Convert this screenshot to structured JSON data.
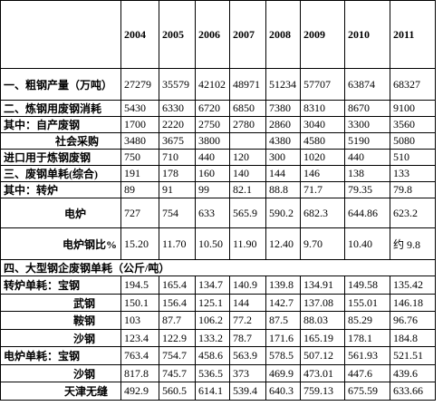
{
  "table": {
    "years": [
      "2004",
      "2005",
      "2006",
      "2007",
      "2008",
      "2009",
      "2010",
      "2011"
    ],
    "rows": [
      {
        "label": "一、粗钢产量（万吨）",
        "values": [
          "27279",
          "35579",
          "42102",
          "48971",
          "51234",
          "57707",
          "63874",
          "68327"
        ]
      },
      {
        "label": "二、炼钢用废钢消耗",
        "values": [
          "5430",
          "6330",
          "6720",
          "6850",
          "7380",
          "8310",
          "8670",
          "9100"
        ]
      },
      {
        "label": "其中：自产废钢",
        "values": [
          "1700",
          "2220",
          "2750",
          "2780",
          "2860",
          "3040",
          "3300",
          "3560"
        ]
      },
      {
        "label": "社会采购",
        "values": [
          "3480",
          "3675",
          "3800",
          null,
          "4380",
          "4580",
          "5190",
          "5080"
        ]
      },
      {
        "label": "进口用于炼钢废钢",
        "values": [
          "750",
          "710",
          "440",
          "120",
          "300",
          "1020",
          "440",
          "510"
        ]
      },
      {
        "label": "三、废钢单耗(综合)",
        "values": [
          "191",
          "178",
          "160",
          "140",
          "144",
          "146",
          "138",
          "133"
        ]
      },
      {
        "label": "其中：转炉",
        "values": [
          "89",
          "91",
          "99",
          "82.1",
          "88.8",
          "71.7",
          "79.35",
          "79.8"
        ]
      },
      {
        "label": "电炉",
        "values": [
          "727",
          "754",
          "633",
          "565.9",
          "590.2",
          "682.3",
          "644.86",
          "623.2"
        ]
      },
      {
        "label": "电炉钢比%",
        "values": [
          "15.20",
          "11.70",
          "10.50",
          "11.90",
          "12.40",
          "9.70",
          "10.40",
          "约 9.8"
        ]
      },
      {
        "label": "四、大型钢企废钢单耗（公斤/吨）"
      },
      {
        "label": "转炉单耗：宝钢",
        "values": [
          "194.5",
          "165.4",
          "134.7",
          "140.9",
          "139.8",
          "134.91",
          "149.58",
          "135.42"
        ]
      },
      {
        "label": "武钢",
        "values": [
          "150.1",
          "156.4",
          "125.1",
          "144",
          "142.7",
          "137.08",
          "155.01",
          "146.18"
        ]
      },
      {
        "label": "鞍钢",
        "values": [
          "103",
          "87.7",
          "106.2",
          "77.2",
          "87.5",
          "88.03",
          "85.29",
          "96.76"
        ]
      },
      {
        "label": "沙钢",
        "values": [
          "123.4",
          "122.9",
          "133.2",
          "78.7",
          "171.6",
          "165.19",
          "178.1",
          "184.8"
        ]
      },
      {
        "label": "电炉单耗：宝钢",
        "values": [
          "763.4",
          "754.7",
          "458.6",
          "563.9",
          "578.5",
          "507.12",
          "561.93",
          "521.51"
        ]
      },
      {
        "label": "沙钢",
        "values": [
          "817.8",
          "745.7",
          "536.5",
          "373",
          "469.9",
          "473.01",
          "447.6",
          "439.6"
        ]
      },
      {
        "label": "天津无缝",
        "values": [
          "492.9",
          "560.5",
          "614.1",
          "539.4",
          "640.3",
          "759.13",
          "675.59",
          "633.66"
        ]
      }
    ]
  }
}
